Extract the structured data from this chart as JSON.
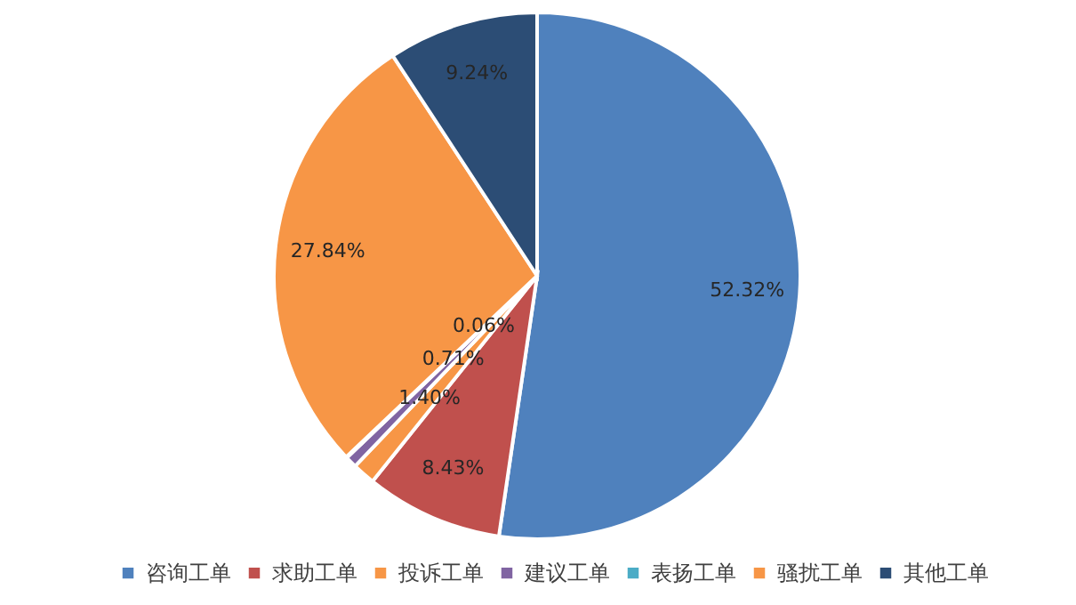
{
  "chart_data": {
    "type": "pie",
    "categories": [
      "咨询工单",
      "求助工单",
      "投诉工单",
      "建议工单",
      "表扬工单",
      "骚扰工单",
      "其他工单"
    ],
    "values": [
      52.32,
      8.43,
      1.4,
      0.71,
      0.06,
      27.84,
      9.24
    ],
    "colors": [
      "#4f81bd",
      "#c0504d",
      "#f79646",
      "#8064a2",
      "#4bacc6",
      "#f79646",
      "#2c4d75"
    ],
    "value_labels": [
      "52.32%",
      "8.43%",
      "1.40%",
      "0.71%",
      "0.06%",
      "27.84%",
      "9.24%"
    ],
    "legend": "bottom"
  }
}
